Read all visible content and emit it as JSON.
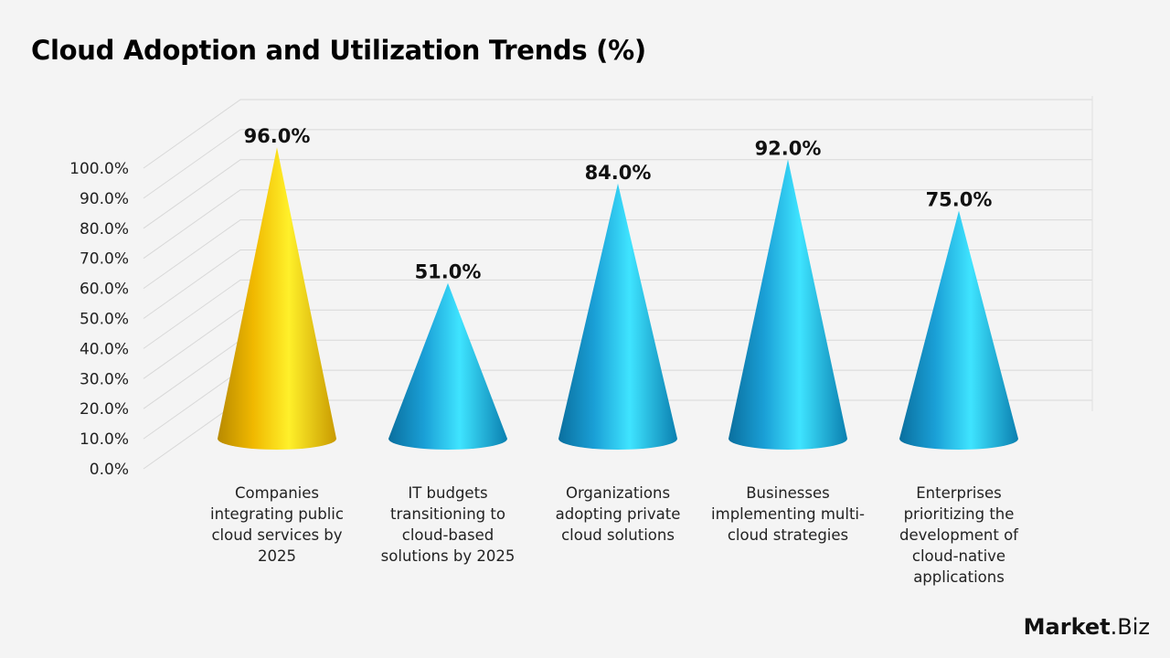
{
  "chart_data": {
    "type": "bar",
    "bar_shape": "3d-cone",
    "title": "Cloud Adoption and Utilization Trends (%)",
    "categories": [
      "Companies integrating public cloud services by 2025",
      "IT budgets transitioning to cloud-based solutions by 2025",
      "Organizations adopting private cloud solutions",
      "Businesses implementing multi-cloud strategies",
      "Enterprises prioritizing the development of cloud-native applications"
    ],
    "values": [
      96.0,
      51.0,
      84.0,
      92.0,
      75.0
    ],
    "data_labels": [
      "96.0%",
      "51.0%",
      "84.0%",
      "92.0%",
      "75.0%"
    ],
    "colors": [
      "#f5c400",
      "#1ea7e0",
      "#1ea7e0",
      "#1ea7e0",
      "#1ea7e0"
    ],
    "ylim": [
      0,
      100
    ],
    "yticks": [
      "0.0%",
      "10.0%",
      "20.0%",
      "30.0%",
      "40.0%",
      "50.0%",
      "60.0%",
      "70.0%",
      "80.0%",
      "90.0%",
      "100.0%"
    ],
    "grid": true,
    "legend": "none"
  },
  "logo": {
    "part1": "Market",
    "part2": ".Biz"
  }
}
